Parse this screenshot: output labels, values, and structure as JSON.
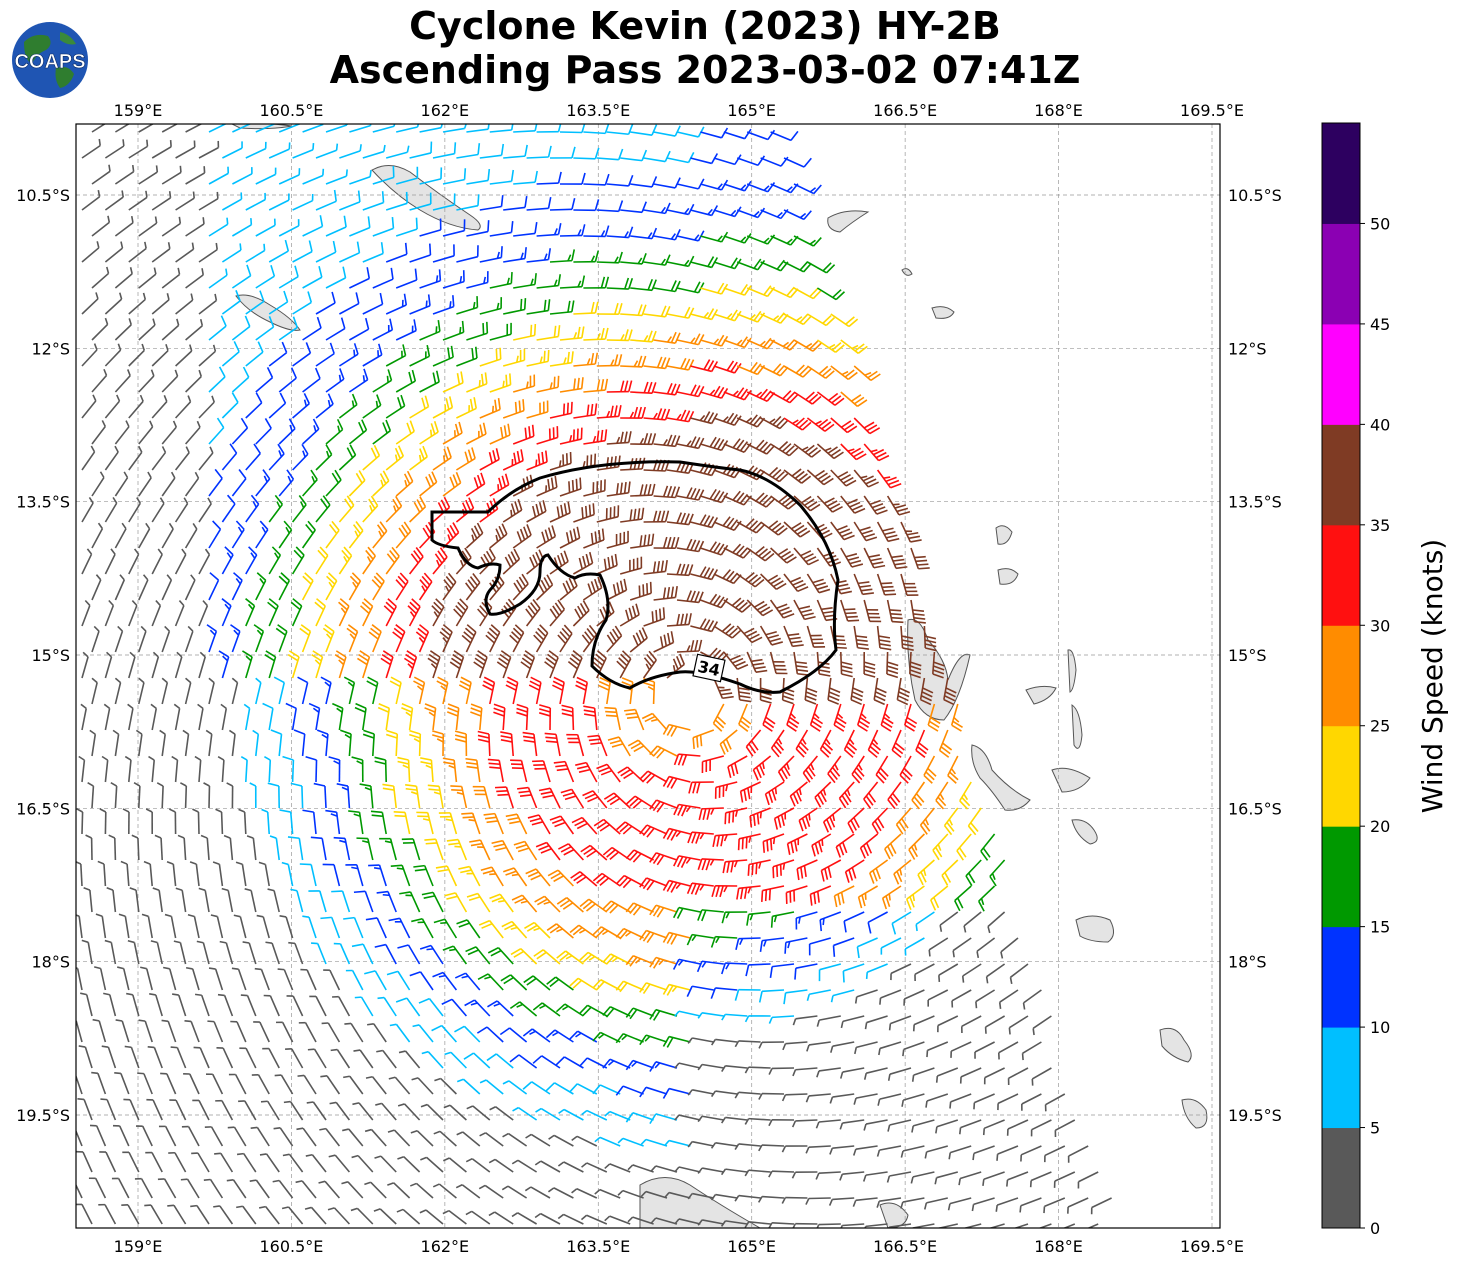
{
  "title": {
    "line1": "Cyclone Kevin (2023) HY-2B",
    "line2": "Ascending Pass 2023-03-02 07:41Z"
  },
  "logo": {
    "text": "COAPS",
    "ocean_color": "#1f55b3",
    "land_color": "#2f7d2f"
  },
  "map": {
    "lon_ticks": [
      "159°E",
      "160.5°E",
      "162°E",
      "163.5°E",
      "165°E",
      "166.5°E",
      "168°E",
      "169.5°E"
    ],
    "lat_ticks": [
      "10.5°S",
      "12°S",
      "13.5°S",
      "15°S",
      "16.5°S",
      "18°S",
      "19.5°S"
    ],
    "contour_label": "34",
    "center": {
      "lon": 164.4,
      "lat": 15.4
    },
    "contour_color": "#000000",
    "land_color": "#e4e4e4"
  },
  "colorbar": {
    "label": "Wind Speed (knots)",
    "ticks": [
      "0",
      "5",
      "10",
      "15",
      "20",
      "25",
      "30",
      "35",
      "40",
      "45",
      "50"
    ],
    "colors": [
      "#595959",
      "#00bfff",
      "#0033ff",
      "#009900",
      "#ffd700",
      "#ff8c00",
      "#ff1010",
      "#7f3b24",
      "#ff00ff",
      "#8b00b3",
      "#2d0060"
    ]
  }
}
